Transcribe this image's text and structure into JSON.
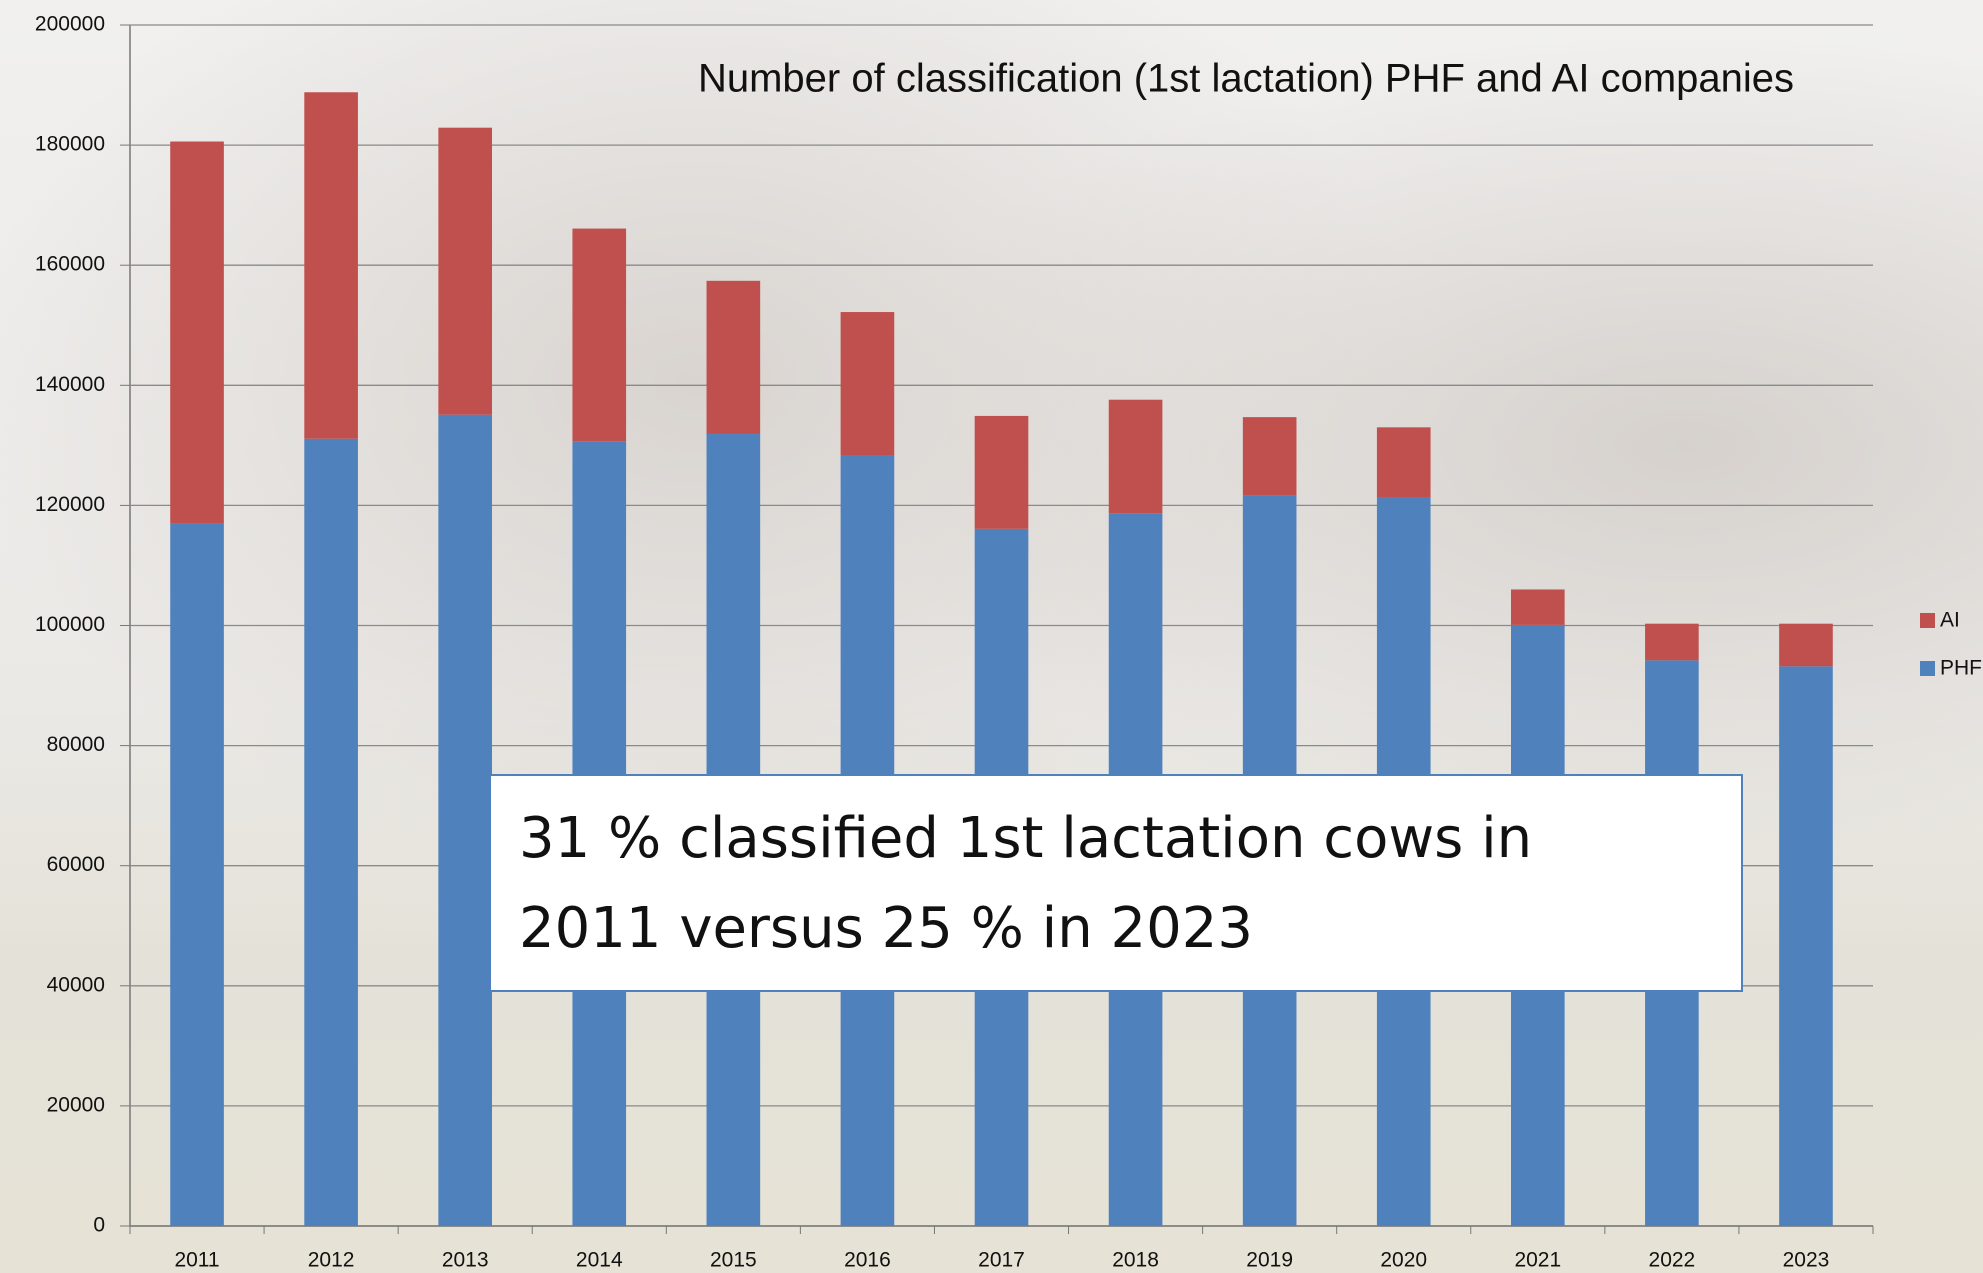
{
  "chart_data": {
    "type": "stacked-bar",
    "title": "Number of classification (1st lactation) PHF and AI companies",
    "annotation": [
      "31 % classified 1st lactation cows in",
      "2011 versus 25 % in 2023"
    ],
    "categories": [
      "2011",
      "2012",
      "2013",
      "2014",
      "2015",
      "2016",
      "2017",
      "2018",
      "2019",
      "2020",
      "2021",
      "2022",
      "2023"
    ],
    "series": [
      {
        "name": "PHF",
        "color": "#4f81bd",
        "values": [
          117000,
          131100,
          135100,
          130700,
          131900,
          128300,
          116100,
          118700,
          121600,
          121400,
          100100,
          94200,
          93200
        ]
      },
      {
        "name": "AI",
        "color": "#c0504d",
        "values": [
          63600,
          57700,
          47800,
          35400,
          25500,
          23900,
          18800,
          18900,
          13100,
          11600,
          5900,
          6100,
          7100
        ]
      }
    ],
    "ylim": [
      0,
      200000
    ],
    "yticks": [
      0,
      20000,
      40000,
      60000,
      80000,
      100000,
      120000,
      140000,
      160000,
      180000,
      200000
    ],
    "grid": true,
    "legend": "right"
  }
}
